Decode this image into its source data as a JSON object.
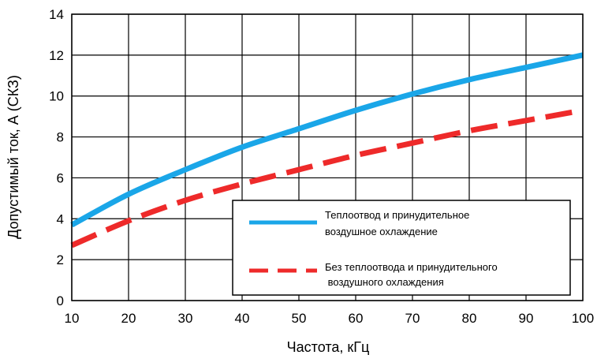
{
  "chart_data": {
    "type": "line",
    "xlabel": "Частота, кГц",
    "ylabel": "Допустимый ток, А (СКЗ)",
    "xlim": [
      10,
      100
    ],
    "ylim": [
      0,
      14
    ],
    "x_ticks": [
      10,
      20,
      30,
      40,
      50,
      60,
      70,
      80,
      90,
      100
    ],
    "y_ticks": [
      0,
      2,
      4,
      6,
      8,
      10,
      12,
      14
    ],
    "grid": true,
    "legend_position": "lower-right",
    "x": [
      10,
      20,
      30,
      40,
      50,
      60,
      70,
      80,
      90,
      100
    ],
    "series": [
      {
        "name_lines": [
          "Теплоотвод и принудительное",
          "воздушное охлаждение"
        ],
        "values": [
          3.7,
          5.2,
          6.4,
          7.5,
          8.4,
          9.3,
          10.1,
          10.8,
          11.4,
          12.0
        ],
        "color": "#1aa6e8",
        "style": "solid"
      },
      {
        "name_lines": [
          "Без теплоотвода и принудительного",
          " воздушного охлаждения"
        ],
        "values": [
          2.7,
          3.9,
          4.9,
          5.7,
          6.4,
          7.1,
          7.7,
          8.3,
          8.8,
          9.3
        ],
        "color": "#ee2a2a",
        "style": "dashed"
      }
    ]
  }
}
